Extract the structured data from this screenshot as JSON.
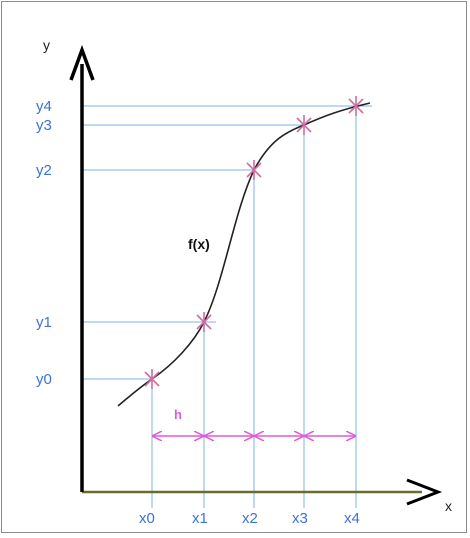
{
  "diagram": {
    "axis_y_label": "y",
    "axis_x_label": "x",
    "function_label": "f(x)",
    "step_label": "h",
    "x_labels": [
      "x0",
      "x1",
      "x2",
      "x3",
      "x4"
    ],
    "y_labels": [
      "y0",
      "y1",
      "y2",
      "y3",
      "y4"
    ],
    "colors": {
      "axis": "#000000",
      "baseline": "#6b6b2a",
      "guides": "#7fb0ea",
      "curve": "#222222",
      "markers": "#d26aa0",
      "step_arrows": "#e05ad8",
      "labels": "#3b73d6"
    }
  }
}
